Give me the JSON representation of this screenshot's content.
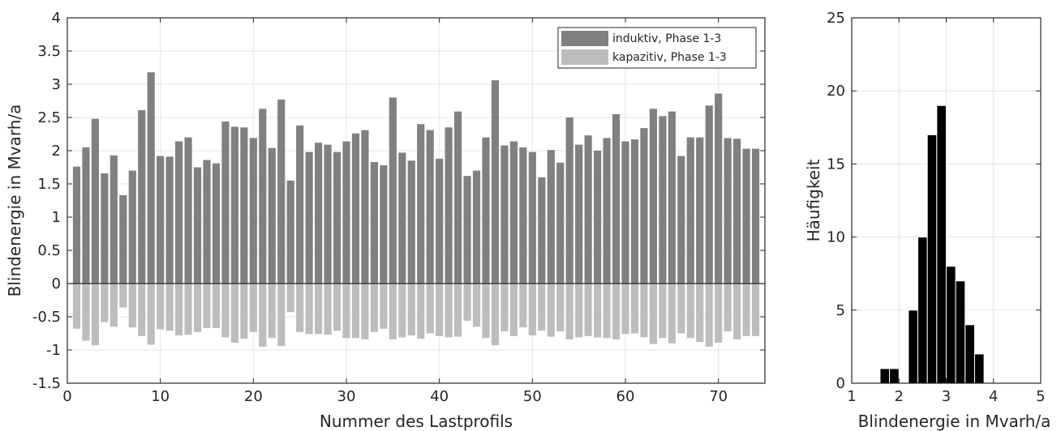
{
  "chart_data": [
    {
      "type": "bar",
      "xlabel": "Nummer des Lastprofils",
      "ylabel": "Blindenergie in Mvarh/a",
      "xlim": [
        0,
        75
      ],
      "ylim": [
        -1.5,
        4
      ],
      "xticks": [
        0,
        10,
        20,
        30,
        40,
        50,
        60,
        70
      ],
      "yticks": [
        -1.5,
        -1,
        -0.5,
        0,
        0.5,
        1,
        1.5,
        2,
        2.5,
        3,
        3.5,
        4
      ],
      "grid": true,
      "legend": "top-right",
      "x": [
        1,
        2,
        3,
        4,
        5,
        6,
        7,
        8,
        9,
        10,
        11,
        12,
        13,
        14,
        15,
        16,
        17,
        18,
        19,
        20,
        21,
        22,
        23,
        24,
        25,
        26,
        27,
        28,
        29,
        30,
        31,
        32,
        33,
        34,
        35,
        36,
        37,
        38,
        39,
        40,
        41,
        42,
        43,
        44,
        45,
        46,
        47,
        48,
        49,
        50,
        51,
        52,
        53,
        54,
        55,
        56,
        57,
        58,
        59,
        60,
        61,
        62,
        63,
        64,
        65,
        66,
        67,
        68,
        69,
        70,
        71,
        72,
        73,
        74
      ],
      "series": [
        {
          "name": "induktiv, Phase 1-3",
          "color": "#808080",
          "values": [
            1.76,
            2.05,
            2.48,
            1.66,
            1.93,
            1.33,
            1.7,
            2.61,
            3.18,
            1.92,
            1.91,
            2.14,
            2.2,
            1.75,
            1.86,
            1.81,
            2.44,
            2.36,
            2.35,
            2.19,
            2.63,
            2.04,
            2.77,
            1.55,
            2.38,
            1.98,
            2.12,
            2.09,
            1.98,
            2.14,
            2.26,
            2.31,
            1.83,
            1.78,
            2.8,
            1.97,
            1.85,
            2.4,
            2.31,
            1.88,
            2.35,
            2.59,
            1.62,
            1.7,
            2.2,
            3.06,
            2.08,
            2.14,
            2.05,
            1.98,
            1.6,
            2.01,
            1.82,
            2.5,
            2.09,
            2.23,
            2.0,
            2.19,
            2.55,
            2.14,
            2.17,
            2.34,
            2.63,
            2.52,
            2.59,
            1.92,
            2.2,
            2.2,
            2.68,
            2.86,
            2.19,
            2.18,
            2.03,
            2.03
          ]
        },
        {
          "name": "kapazitiv, Phase 1-3",
          "color": "#bdbdbd",
          "values": [
            -0.68,
            -0.86,
            -0.93,
            -0.58,
            -0.65,
            -0.36,
            -0.66,
            -0.79,
            -0.92,
            -0.69,
            -0.71,
            -0.78,
            -0.77,
            -0.73,
            -0.67,
            -0.67,
            -0.81,
            -0.89,
            -0.83,
            -0.73,
            -0.95,
            -0.82,
            -0.94,
            -0.43,
            -0.73,
            -0.76,
            -0.76,
            -0.77,
            -0.71,
            -0.82,
            -0.82,
            -0.84,
            -0.73,
            -0.68,
            -0.84,
            -0.81,
            -0.78,
            -0.83,
            -0.75,
            -0.79,
            -0.81,
            -0.8,
            -0.56,
            -0.65,
            -0.82,
            -0.93,
            -0.72,
            -0.79,
            -0.66,
            -0.78,
            -0.71,
            -0.8,
            -0.72,
            -0.84,
            -0.81,
            -0.79,
            -0.81,
            -0.82,
            -0.84,
            -0.76,
            -0.75,
            -0.81,
            -0.91,
            -0.82,
            -0.9,
            -0.75,
            -0.82,
            -0.88,
            -0.95,
            -0.89,
            -0.72,
            -0.84,
            -0.79,
            -0.79
          ]
        }
      ]
    },
    {
      "type": "histogram",
      "xlabel": "Blindenergie in Mvarh/a",
      "ylabel": "Häufigkeit",
      "xlim": [
        1,
        5
      ],
      "ylim": [
        0,
        25
      ],
      "xticks": [
        1,
        2,
        3,
        4,
        5
      ],
      "yticks": [
        0,
        5,
        10,
        15,
        20,
        25
      ],
      "grid": true,
      "bar_color": "#000000",
      "bins": [
        {
          "from": 1.6,
          "to": 1.8,
          "count": 1
        },
        {
          "from": 1.8,
          "to": 2.0,
          "count": 1
        },
        {
          "from": 2.2,
          "to": 2.4,
          "count": 5
        },
        {
          "from": 2.4,
          "to": 2.6,
          "count": 10
        },
        {
          "from": 2.6,
          "to": 2.8,
          "count": 17
        },
        {
          "from": 2.8,
          "to": 3.0,
          "count": 19
        },
        {
          "from": 3.0,
          "to": 3.2,
          "count": 8
        },
        {
          "from": 3.2,
          "to": 3.4,
          "count": 7
        },
        {
          "from": 3.4,
          "to": 3.6,
          "count": 4
        },
        {
          "from": 3.6,
          "to": 3.8,
          "count": 2
        }
      ]
    }
  ]
}
